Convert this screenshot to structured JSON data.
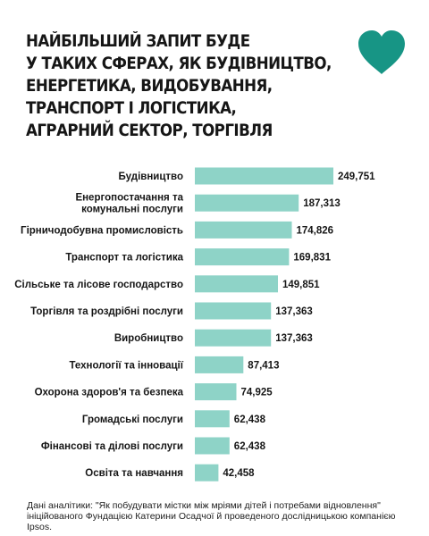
{
  "title_lines": [
    "НАЙБІЛЬШИЙ ЗАПИТ БУДЕ",
    "У ТАКИХ СФЕРАХ, ЯК БУДІВНИЦТВО,",
    "ЕНЕРГЕТИКА, ВИДОБУВАННЯ,",
    "ТРАНСПОРТ І ЛОГІСТИКА,",
    "АГРАРНИЙ СЕКТОР, ТОРГІВЛЯ"
  ],
  "heart_icon": "heart-icon",
  "colors": {
    "bar": "#8ed3c7",
    "heart": "#179585",
    "text": "#161616"
  },
  "chart_data": {
    "type": "bar",
    "orientation": "horizontal",
    "categories": [
      [
        "Будівництво"
      ],
      [
        "Енергопостачання та",
        "комунальні послуги"
      ],
      [
        "Гірничодобувна промисловість"
      ],
      [
        "Транспорт та логістика"
      ],
      [
        "Сільське та лісове господарство"
      ],
      [
        "Торгівля та роздрібні послуги"
      ],
      [
        "Виробництво"
      ],
      [
        "Технології та інновації"
      ],
      [
        "Охорона здоров'я та безпека"
      ],
      [
        "Громадські послуги"
      ],
      [
        "Фінансові та ділові послуги"
      ],
      [
        "Освіта та навчання"
      ]
    ],
    "values": [
      249751,
      187313,
      174826,
      169831,
      149851,
      137363,
      137363,
      87413,
      74925,
      62438,
      62438,
      42458
    ],
    "value_labels": [
      "249,751",
      "187,313",
      "174,826",
      "169,831",
      "149,851",
      "137,363",
      "137,363",
      "87,413",
      "74,925",
      "62,438",
      "62,438",
      "42,458"
    ],
    "title": "",
    "xlabel": "",
    "ylabel": "",
    "xlim": [
      0,
      249751
    ],
    "grid": false,
    "legend": "none"
  },
  "footnote_lines": [
    "Дані аналітики: \"Як побудувати містки між мріями дітей і потребами відновлення\"",
    "ініційованого Фундацією Катерини Осадчої й проведеного дослідницькою компанією Ipsos."
  ]
}
